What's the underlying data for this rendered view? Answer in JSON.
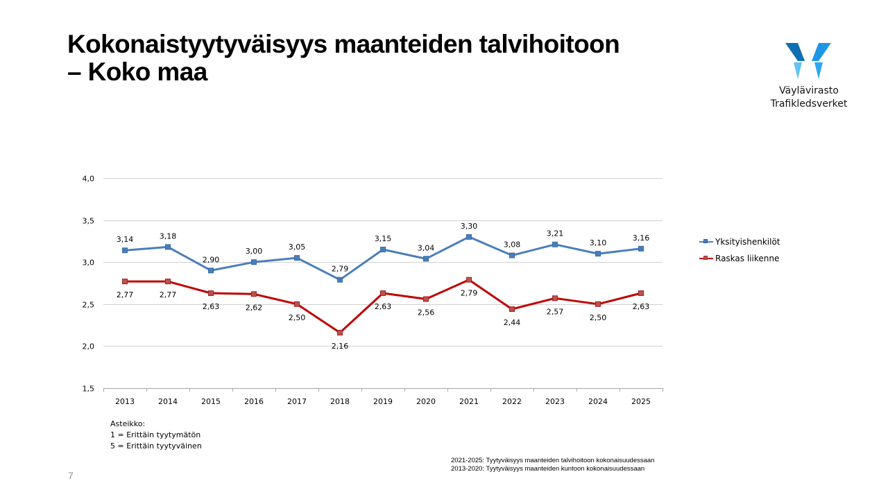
{
  "slide": {
    "title_line1": "Kokonaistyytyväisyys maanteiden talvihoitoon",
    "title_line2": "– Koko maa",
    "page_number": "7"
  },
  "logo": {
    "line1": "Väylävirasto",
    "line2": "Trafikledsverket",
    "colors": {
      "dark": "#0f6fb0",
      "mid": "#1e96e6",
      "light": "#5fc4f2"
    }
  },
  "notes": {
    "scale_title": "Asteikko:",
    "scale_min": "1 = Erittäin tyytymätön",
    "scale_max": "5 = Erittäin tyytyväinen",
    "source_1": "2021-2025: Tyytyväisyys maanteiden talvihoitoon kokonaisuudessaan",
    "source_2": "2013-2020: Tyytyväisyys maanteiden kuntoon kokonaisuudessaan"
  },
  "chart_data": {
    "type": "line",
    "title": "",
    "xlabel": "",
    "ylabel": "",
    "ylim": [
      1.5,
      4.0
    ],
    "yticks": [
      "1,5",
      "2,0",
      "2,5",
      "3,0",
      "3,5",
      "4,0"
    ],
    "grid": true,
    "legend_position": "right",
    "categories": [
      "2013",
      "2014",
      "2015",
      "2016",
      "2017",
      "2018",
      "2019",
      "2020",
      "2021",
      "2022",
      "2023",
      "2024",
      "2025"
    ],
    "series": [
      {
        "name": "Yksityishenkilöt",
        "color": "#4a7ebb",
        "values": [
          3.14,
          3.18,
          2.9,
          3.0,
          3.05,
          2.79,
          3.15,
          3.04,
          3.3,
          3.08,
          3.21,
          3.1,
          3.16
        ],
        "labels": [
          "3,14",
          "3,18",
          "2,90",
          "3,00",
          "3,05",
          "2,79",
          "3,15",
          "3,04",
          "3,30",
          "3,08",
          "3,21",
          "3,10",
          "3,16"
        ],
        "label_position": "above"
      },
      {
        "name": "Raskas liikenne",
        "color": "#c00000",
        "values": [
          2.77,
          2.77,
          2.63,
          2.62,
          2.5,
          2.16,
          2.63,
          2.56,
          2.79,
          2.44,
          2.57,
          2.5,
          2.63
        ],
        "labels": [
          "2,77",
          "2,77",
          "2,63",
          "2,62",
          "2,50",
          "2,16",
          "2,63",
          "2,56",
          "2,79",
          "2,44",
          "2,57",
          "2,50",
          "2,63"
        ],
        "label_position": "below"
      }
    ]
  }
}
